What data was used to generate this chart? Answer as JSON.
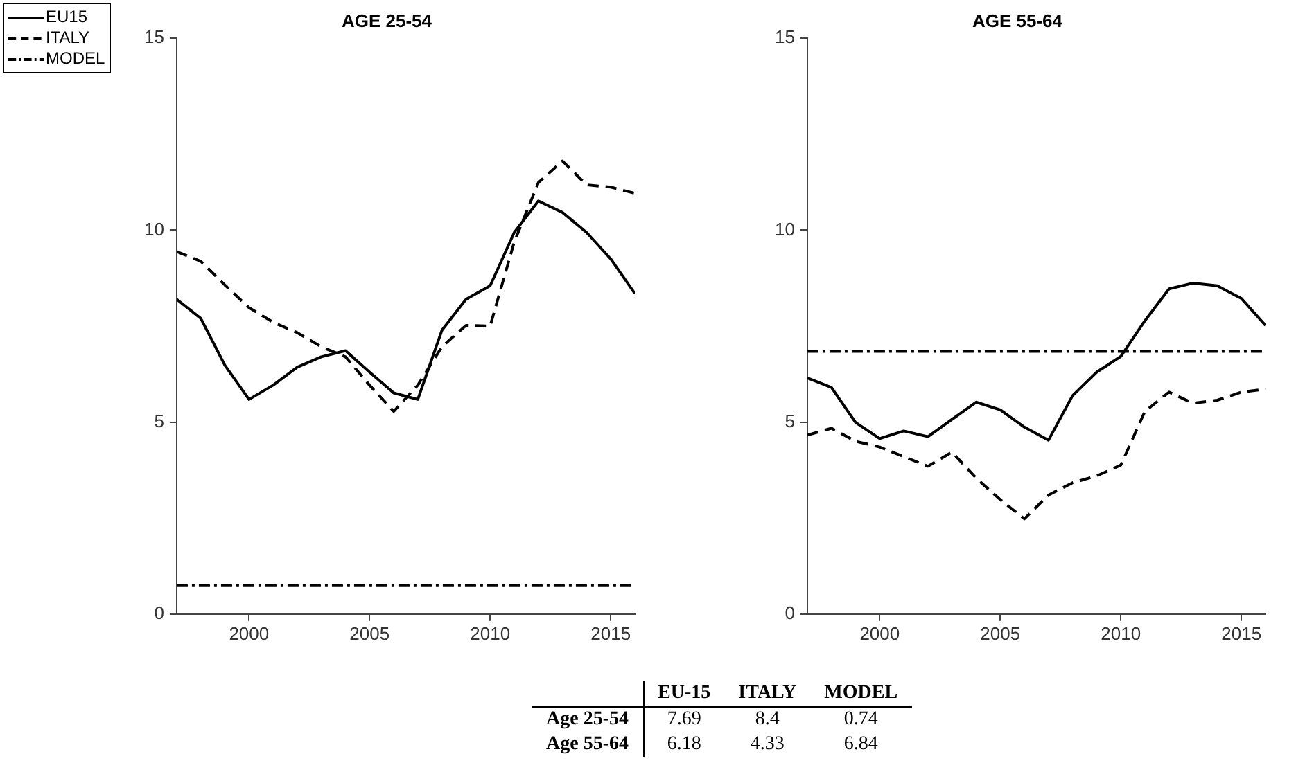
{
  "chart_data": [
    {
      "type": "line",
      "title": "AGE 25-54",
      "x": [
        1997,
        1998,
        1999,
        2000,
        2001,
        2002,
        2003,
        2004,
        2005,
        2006,
        2007,
        2008,
        2009,
        2010,
        2011,
        2012,
        2013,
        2014,
        2015,
        2016
      ],
      "series": [
        {
          "name": "EU15",
          "color": "#000000",
          "line_style": "solid",
          "values": [
            8.2,
            7.7,
            6.48,
            5.59,
            5.96,
            6.43,
            6.7,
            6.86,
            6.3,
            5.76,
            5.59,
            7.39,
            8.2,
            8.55,
            9.94,
            10.76,
            10.46,
            9.94,
            9.25,
            8.35
          ]
        },
        {
          "name": "ITALY",
          "color": "#000000",
          "line_style": "dashed",
          "values": [
            9.44,
            9.19,
            8.57,
            7.98,
            7.6,
            7.33,
            6.96,
            6.7,
            5.96,
            5.28,
            5.96,
            6.96,
            7.52,
            7.5,
            9.69,
            11.24,
            11.8,
            11.18,
            11.12,
            10.96
          ]
        },
        {
          "name": "MODEL",
          "color": "#000000",
          "line_style": "dashdot",
          "values": [
            0.74,
            0.74,
            0.74,
            0.74,
            0.74,
            0.74,
            0.74,
            0.74,
            0.74,
            0.74,
            0.74,
            0.74,
            0.74,
            0.74,
            0.74,
            0.74,
            0.74,
            0.74,
            0.74,
            0.74
          ]
        }
      ],
      "xlim": [
        1997,
        2016
      ],
      "xticks": [
        2000,
        2005,
        2010,
        2015
      ],
      "ylim": [
        0,
        15
      ],
      "yticks": [
        0,
        5,
        10,
        15
      ],
      "grid": false,
      "legend": "top left",
      "marker": "none"
    },
    {
      "type": "line",
      "title": "AGE 55-64",
      "x": [
        1997,
        1998,
        1999,
        2000,
        2001,
        2002,
        2003,
        2004,
        2005,
        2006,
        2007,
        2008,
        2009,
        2010,
        2011,
        2012,
        2013,
        2014,
        2015,
        2016
      ],
      "series": [
        {
          "color": "#000000",
          "line_style": "solid",
          "values": [
            6.15,
            5.9,
            4.99,
            4.57,
            4.77,
            4.62,
            5.07,
            5.52,
            5.32,
            4.87,
            4.53,
            5.69,
            6.3,
            6.71,
            7.64,
            8.47,
            8.62,
            8.55,
            8.22,
            7.52
          ]
        },
        {
          "color": "#000000",
          "line_style": "dashed",
          "values": [
            4.66,
            4.84,
            4.5,
            4.35,
            4.1,
            3.85,
            4.22,
            3.54,
            2.98,
            2.48,
            3.1,
            3.42,
            3.6,
            3.88,
            5.28,
            5.78,
            5.49,
            5.57,
            5.78,
            5.86
          ]
        },
        {
          "color": "#000000",
          "line_style": "dashdot",
          "values": [
            6.84,
            6.84,
            6.84,
            6.84,
            6.84,
            6.84,
            6.84,
            6.84,
            6.84,
            6.84,
            6.84,
            6.84,
            6.84,
            6.84,
            6.84,
            6.84,
            6.84,
            6.84,
            6.84,
            6.84
          ]
        }
      ],
      "xlim": [
        1997,
        2016
      ],
      "xticks": [
        2000,
        2005,
        2010,
        2015
      ],
      "ylim": [
        0,
        15
      ],
      "yticks": [
        0,
        5,
        10,
        15
      ],
      "grid": false,
      "legend": false,
      "marker": "none"
    },
    {
      "type": "other",
      "categories": [
        "EU-15",
        "ITALY",
        "MODEL"
      ],
      "data_labels": true,
      "series": [
        {
          "name": "Age 25-54",
          "values": [
            7.69,
            8.4,
            0.74
          ]
        },
        {
          "name": "Age 55-64",
          "values": [
            6.18,
            4.33,
            6.84
          ]
        }
      ]
    }
  ]
}
